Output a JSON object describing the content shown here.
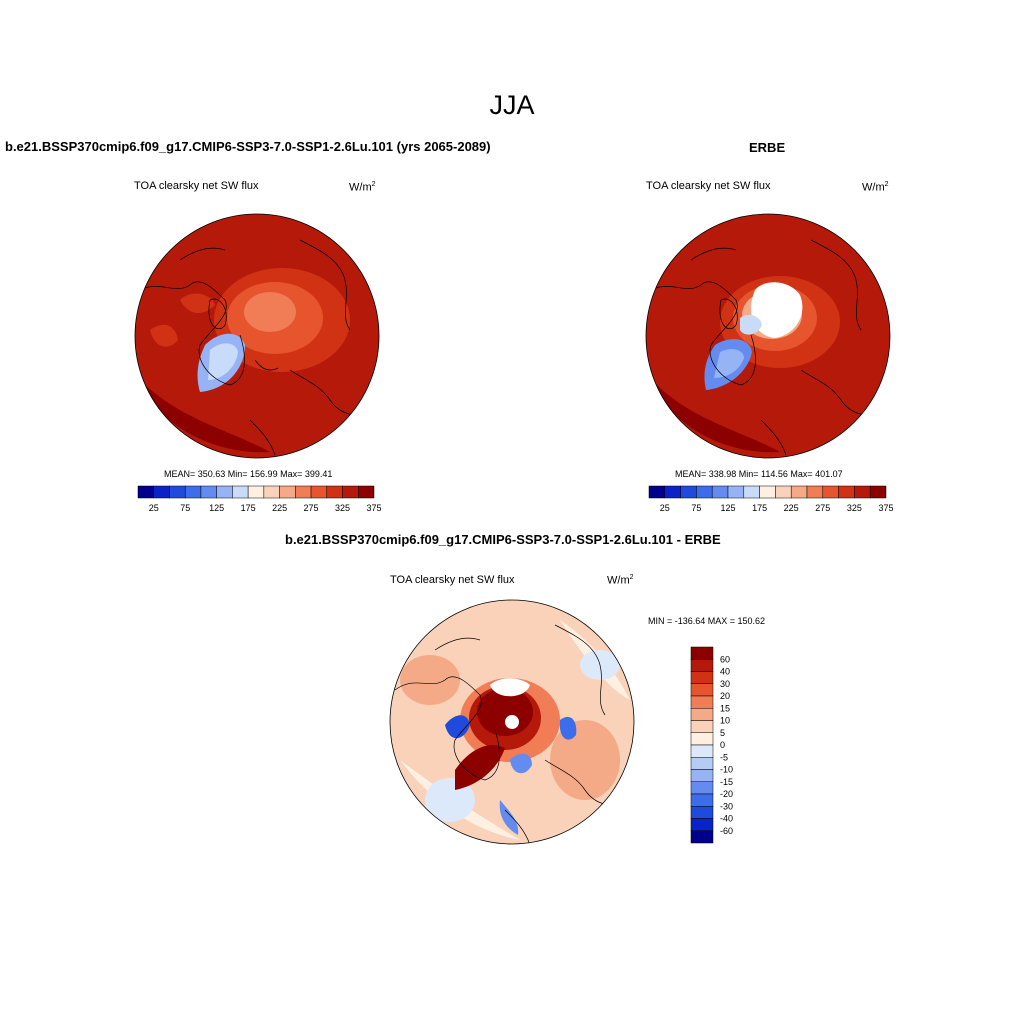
{
  "figure": {
    "title": "JJA"
  },
  "panels": [
    {
      "title": "b.e21.BSSP370cmip6.f09_g17.CMIP6-SSP3-7.0-SSP1-2.6Lu.101 (yrs 2065-2089)",
      "variable": "TOA clearsky net SW flux",
      "units_base": "W/m",
      "units_exp": "2",
      "stats": "MEAN= 350.63  Min= 156.99  Max= 399.41"
    },
    {
      "title": "ERBE",
      "variable": "TOA clearsky net SW flux",
      "units_base": "W/m",
      "units_exp": "2",
      "stats": "MEAN= 338.98  Min= 114.56  Max= 401.07"
    },
    {
      "title": "b.e21.BSSP370cmip6.f09_g17.CMIP6-SSP3-7.0-SSP1-2.6Lu.101 - ERBE",
      "variable": "TOA clearsky net SW flux",
      "units_base": "W/m",
      "units_exp": "2",
      "stats": "MIN = -136.64 MAX = 150.62"
    }
  ],
  "colorbar_abs": {
    "colors": [
      "#00008c",
      "#0a23c8",
      "#1e4bdc",
      "#3c6eeb",
      "#648cf0",
      "#96b4f5",
      "#c8dcfa",
      "#fff0e1",
      "#fad2b9",
      "#f5aa87",
      "#f07d55",
      "#e6552d",
      "#d23214",
      "#b4190a",
      "#8c0000"
    ],
    "tick_labels": [
      "25",
      "75",
      "125",
      "175",
      "225",
      "275",
      "325",
      "375"
    ]
  },
  "colorbar_diff": {
    "colors": [
      "#8c0000",
      "#b4190a",
      "#d23214",
      "#e6552d",
      "#f07d55",
      "#f5aa87",
      "#fad2b9",
      "#fff0e1",
      "#dce9fa",
      "#b4cdf5",
      "#96b4f5",
      "#648cf0",
      "#3c6eeb",
      "#1e4bdc",
      "#0a23c8",
      "#00008c"
    ],
    "tick_labels": [
      "60",
      "40",
      "30",
      "20",
      "15",
      "10",
      "5",
      "0",
      "-5",
      "-10",
      "-15",
      "-20",
      "-30",
      "-40",
      "-60"
    ]
  },
  "map_palette": {
    "darkred": "#8c0000",
    "red": "#b4190a",
    "red2": "#d23214",
    "orange": "#e6552d",
    "salmon": "#f07d55",
    "peach": "#f5aa87",
    "lightpeach": "#fad2b9",
    "cream": "#fff0e1",
    "paleblue": "#dce9fa",
    "lightblue": "#b4cdf5",
    "blue": "#648cf0",
    "dblue": "#1e4bdc"
  }
}
